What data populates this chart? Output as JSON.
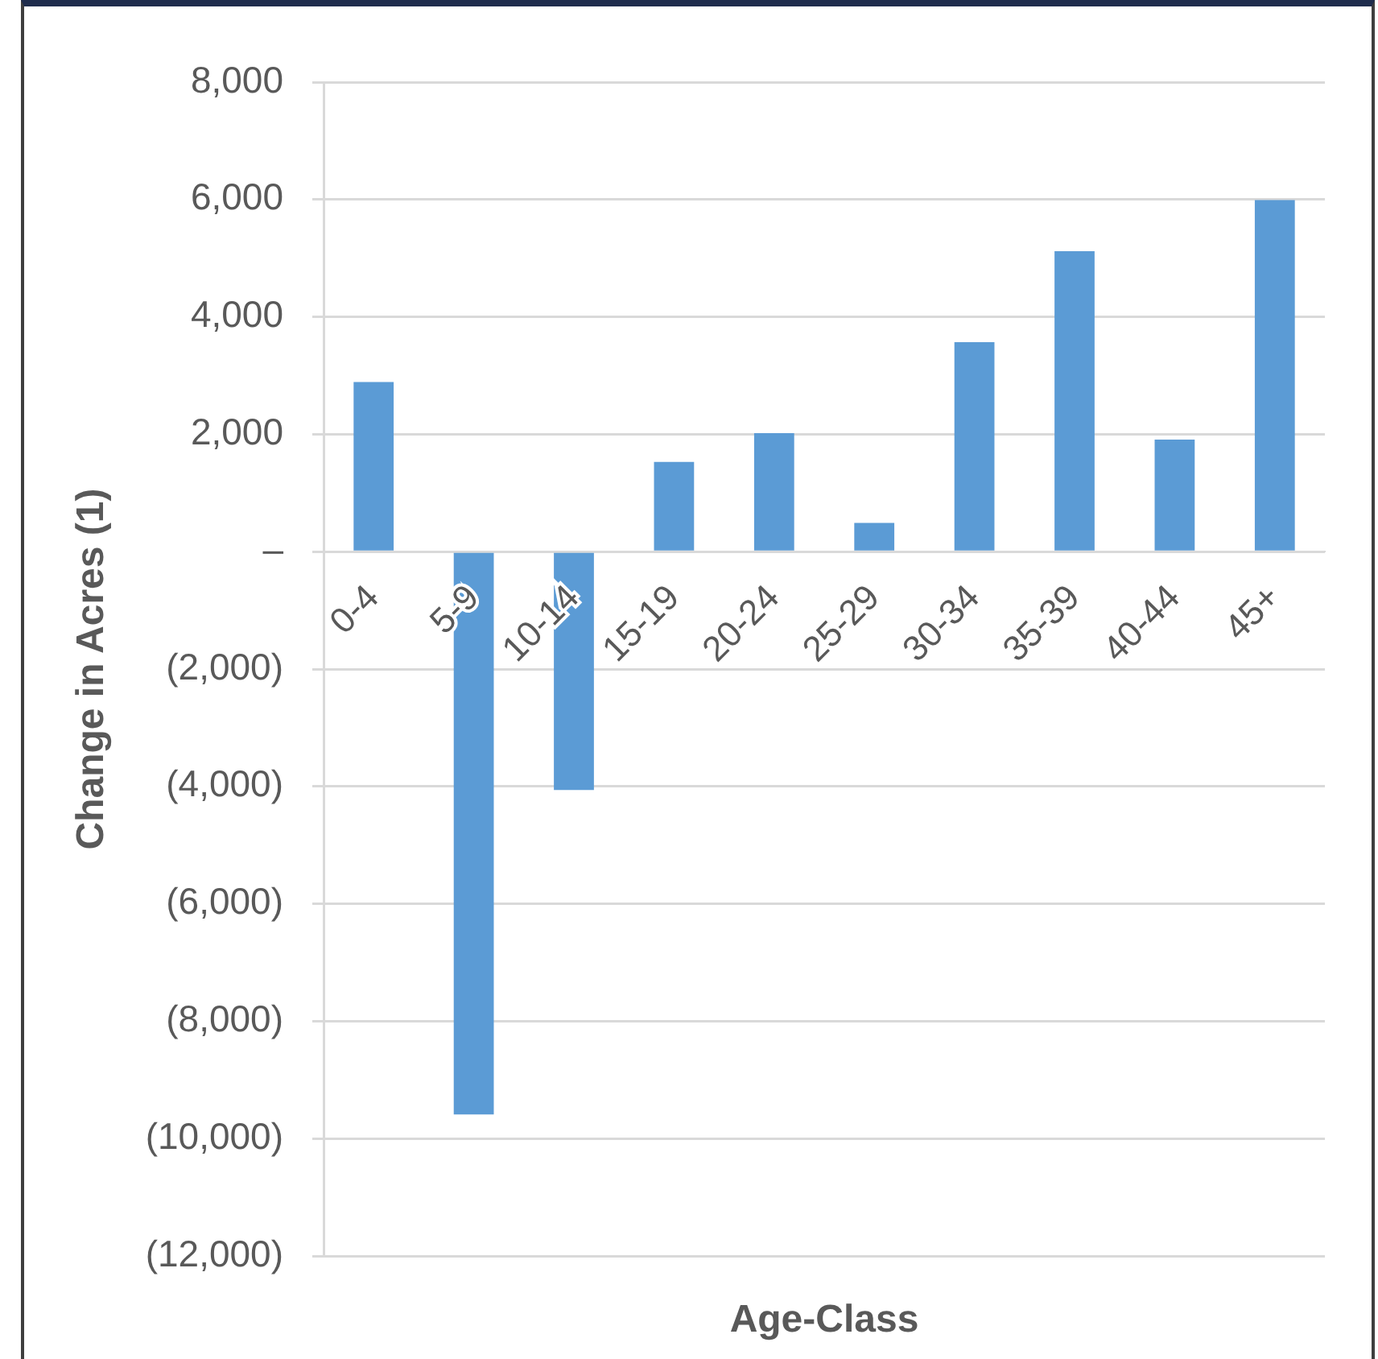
{
  "chart_data": {
    "type": "bar",
    "xlabel": "Age-Class",
    "ylabel": "Change in Acres (1)",
    "categories": [
      "0-4",
      "5-9",
      "10-14",
      "15-19",
      "20-24",
      "25-29",
      "30-34",
      "35-39",
      "40-44",
      "45+"
    ],
    "values": [
      2890,
      -9590,
      -4060,
      1530,
      2020,
      490,
      3570,
      5120,
      1910,
      5990
    ],
    "color": "#5b9bd5",
    "ylim": [
      -12000,
      8000
    ],
    "yticks": [
      {
        "value": 8000,
        "label": "8,000"
      },
      {
        "value": 6000,
        "label": "6,000"
      },
      {
        "value": 4000,
        "label": "4,000"
      },
      {
        "value": 2000,
        "label": "2,000"
      },
      {
        "value": 0,
        "label": "–"
      },
      {
        "value": -2000,
        "label": "(2,000)"
      },
      {
        "value": -4000,
        "label": "(4,000)"
      },
      {
        "value": -6000,
        "label": "(6,000)"
      },
      {
        "value": -8000,
        "label": "(8,000)"
      },
      {
        "value": -10000,
        "label": "(10,000)"
      },
      {
        "value": -12000,
        "label": "(12,000)"
      }
    ],
    "grid": "y",
    "legend": false
  }
}
